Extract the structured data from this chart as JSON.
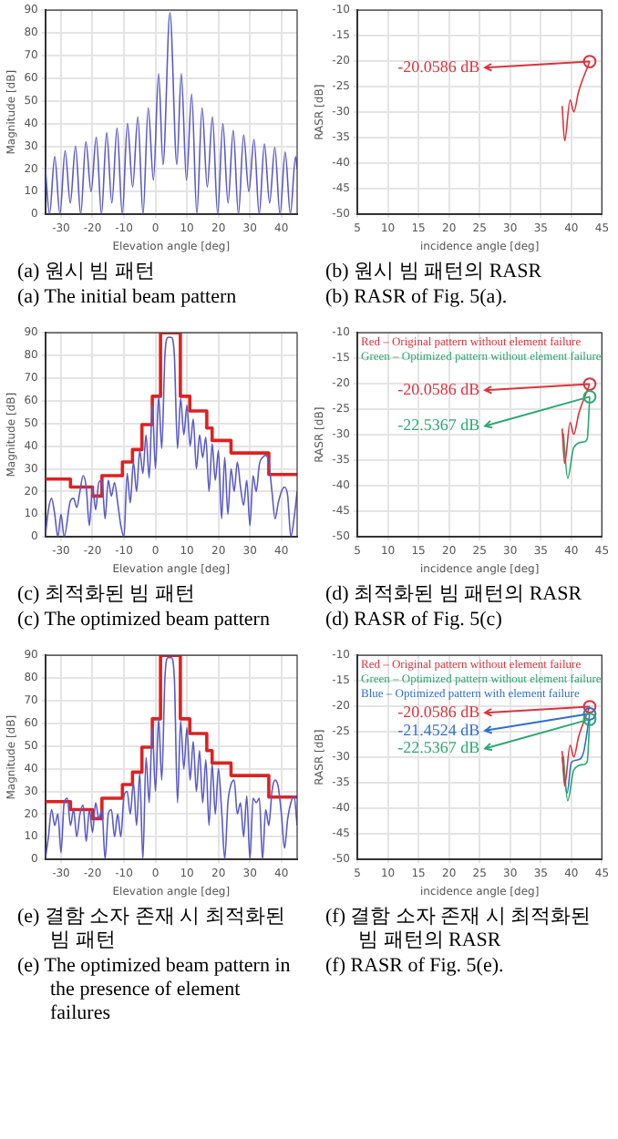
{
  "chart_data": [
    {
      "type": "line",
      "xlabel": "Elevation angle [deg]",
      "ylabel": "Magnitude [dB]",
      "xlim": [
        -35,
        45
      ],
      "xticks": [
        -30,
        -20,
        -10,
        0,
        10,
        20,
        30,
        40
      ],
      "ylim": [
        0,
        90
      ],
      "yticks": [
        0,
        10,
        20,
        30,
        40,
        50,
        60,
        70,
        80,
        90
      ],
      "grid": true,
      "series": [
        {
          "color": "#5a5ac8",
          "x": [
            -35,
            -33.65,
            -32,
            -30.35,
            -28.7,
            -27.05,
            -25.4,
            -23.75,
            -22.1,
            -20.45,
            -18.8,
            -17.15,
            -15.5,
            -13.85,
            -12.2,
            -10.55,
            -8.9,
            -7.25,
            -5.6,
            -3.95,
            -2.3,
            -0.65,
            1,
            2.4,
            4.6,
            6.8,
            8.2,
            9.85,
            11.5,
            13.15,
            14.8,
            16.45,
            18.1,
            19.75,
            21.4,
            23.05,
            24.7,
            26.35,
            28,
            29.65,
            31.3,
            32.95,
            34.6,
            36.25,
            37.9,
            39.55,
            41.2,
            42.85,
            44.5,
            45
          ],
          "values": [
            21,
            0,
            25.5,
            0,
            28,
            5,
            30,
            0,
            32,
            10,
            34,
            0,
            36,
            5,
            38,
            0,
            40,
            12,
            43,
            0,
            47,
            15,
            62,
            22,
            89,
            22,
            62,
            15,
            53,
            0,
            47,
            12,
            43,
            0,
            40,
            5,
            37,
            0,
            35,
            10,
            33,
            0,
            31,
            5,
            29.5,
            0,
            27.5,
            0,
            25.5,
            20
          ]
        }
      ],
      "annotations": [
        "(a) 원시 빔 패턴",
        "(a) The initial beam pattern"
      ]
    },
    {
      "type": "line",
      "xlabel": "incidence angle [deg]",
      "ylabel": "RASR [dB]",
      "xlim": [
        5,
        45
      ],
      "xticks": [
        5,
        10,
        15,
        20,
        25,
        30,
        35,
        40,
        45
      ],
      "ylim": [
        -50,
        -10
      ],
      "yticks": [
        -50,
        -45,
        -40,
        -35,
        -30,
        -25,
        -20,
        -15,
        -10
      ],
      "grid": true,
      "series": [
        {
          "color": "#e0303a",
          "x": [
            38.5,
            38.9,
            39.8,
            40.4,
            41.2,
            43
          ],
          "values": [
            -28.75,
            -35.6,
            -27.6,
            -29.9,
            -25.9,
            -20.0586
          ]
        }
      ],
      "annotations": [
        "-20.0586 dB",
        "(b) 원시 빔 패턴의 RASR",
        "(b) RASR of Fig. 5(a)."
      ]
    },
    {
      "type": "line",
      "xlabel": "Elevation angle [deg]",
      "ylabel": "Magnitude [dB]",
      "xlim": [
        -35,
        45
      ],
      "xticks": [
        -30,
        -20,
        -10,
        0,
        10,
        20,
        30,
        40
      ],
      "ylim": [
        0,
        90
      ],
      "yticks": [
        0,
        10,
        20,
        30,
        40,
        50,
        60,
        70,
        80,
        90
      ],
      "grid": true,
      "series": [
        {
          "color": "#5a5ac8",
          "x": [
            -35,
            -34,
            -33,
            -32,
            -31,
            -30,
            -29,
            -27,
            -26,
            -25,
            -24,
            -23,
            -22,
            -21,
            -20,
            -19,
            -18,
            -17,
            -16,
            -15,
            -14,
            -13,
            -12,
            -11,
            -10,
            -9,
            -8,
            -7,
            -6,
            -5,
            -4,
            -3,
            -2,
            -1,
            0,
            1,
            2,
            3,
            4,
            5,
            6,
            7,
            8,
            9,
            10,
            11,
            12,
            13,
            14,
            15,
            16,
            17,
            18,
            19,
            20,
            21,
            22,
            23,
            24,
            25,
            26,
            27,
            28,
            29,
            30,
            31,
            32,
            33,
            34,
            35,
            36,
            37,
            38,
            39,
            40,
            41,
            42,
            43,
            44,
            45
          ],
          "values": [
            0,
            12,
            17,
            10,
            0,
            10,
            0,
            16,
            17,
            13,
            20,
            27,
            22,
            5,
            22,
            12,
            24,
            25,
            8,
            25,
            18,
            24,
            15,
            5,
            0,
            28,
            15,
            33,
            20,
            38,
            28,
            45,
            26,
            58,
            30,
            62,
            39,
            80,
            88,
            88,
            80,
            39,
            61,
            45,
            58,
            40,
            52,
            30,
            45,
            35,
            44,
            20,
            41,
            25,
            38,
            8,
            35,
            10,
            30,
            20,
            33,
            22,
            14,
            25,
            5,
            27,
            20,
            32,
            35,
            36,
            33,
            20,
            8,
            15,
            20,
            22,
            18,
            0,
            8,
            20
          ]
        },
        {
          "type": "step",
          "color": "#e02020",
          "x": [
            -35,
            -27,
            -20,
            -17,
            -10.5,
            -7.3,
            -4.3,
            -1,
            1.6,
            7.9,
            10.9,
            16.3,
            18,
            24,
            36,
            45
          ],
          "values": [
            25.5,
            22,
            18,
            27,
            33,
            38.5,
            49.5,
            62,
            90,
            62,
            55.5,
            48,
            42.5,
            37,
            27.5,
            27.5
          ]
        }
      ],
      "annotations": [
        "(c) 최적화된 빔 패턴",
        "(c) The optimized beam pattern"
      ]
    },
    {
      "type": "line",
      "xlabel": "incidence angle [deg]",
      "ylabel": "RASR [dB]",
      "xlim": [
        5,
        45
      ],
      "xticks": [
        5,
        10,
        15,
        20,
        25,
        30,
        35,
        40,
        45
      ],
      "ylim": [
        -50,
        -10
      ],
      "yticks": [
        -50,
        -45,
        -40,
        -35,
        -30,
        -25,
        -20,
        -15,
        -10
      ],
      "grid": true,
      "legend": "top left",
      "series": [
        {
          "name": "Red – Original pattern without element failure",
          "color": "#e0303a",
          "x": [
            38.5,
            38.9,
            39.8,
            40.4,
            41.2,
            43
          ],
          "values": [
            -28.75,
            -35.6,
            -27.6,
            -29.9,
            -25.9,
            -20.0586
          ]
        },
        {
          "name": "Green – Optimized pattern without element failure",
          "color": "#2aa870",
          "x": [
            38.7,
            39.4,
            40.4,
            42,
            42.6,
            43
          ],
          "values": [
            -29.7,
            -38.5,
            -32.5,
            -31.4,
            -30.8,
            -22.5367
          ]
        }
      ],
      "annotations": [
        "-20.0586 dB",
        "-22.5367 dB",
        "(d) 최적화된 빔 패턴의 RASR",
        "(d) RASR of Fig. 5(c)"
      ]
    },
    {
      "type": "line",
      "xlabel": "Elevation angle [deg]",
      "ylabel": "Magnitude [dB]",
      "xlim": [
        -35,
        45
      ],
      "xticks": [
        -30,
        -20,
        -10,
        0,
        10,
        20,
        30,
        40
      ],
      "ylim": [
        0,
        90
      ],
      "yticks": [
        0,
        10,
        20,
        30,
        40,
        50,
        60,
        70,
        80,
        90
      ],
      "grid": true,
      "series": [
        {
          "color": "#5a5ac8",
          "x": [
            -35,
            -34,
            -33,
            -32,
            -31,
            -30,
            -29,
            -28,
            -27,
            -26,
            -25,
            -24,
            -23,
            -22,
            -21,
            -20,
            -19,
            -18,
            -17,
            -16,
            -15,
            -14,
            -13,
            -12,
            -11,
            -10,
            -9,
            -8,
            -7,
            -6,
            -5,
            -4,
            -3,
            -2,
            -1,
            0,
            1,
            2,
            3,
            4,
            5,
            6,
            7,
            8,
            9,
            10,
            11,
            12,
            13,
            14,
            15,
            16,
            17,
            18,
            19,
            20,
            21,
            22,
            23,
            24,
            25,
            26,
            27,
            28,
            29,
            30,
            31,
            32,
            33,
            34,
            35,
            36,
            37,
            38,
            39,
            40,
            41,
            42,
            43,
            44,
            45
          ],
          "values": [
            0,
            10,
            22,
            15,
            20,
            3,
            25,
            27,
            15,
            22,
            10,
            20,
            24,
            8,
            22,
            12,
            25,
            18,
            22,
            0,
            20,
            22,
            10,
            20,
            10,
            28,
            30,
            20,
            34,
            15,
            38,
            0,
            45,
            25,
            58,
            30,
            62,
            35,
            80,
            89,
            89,
            80,
            25,
            61,
            40,
            58,
            35,
            52,
            30,
            48,
            25,
            44,
            15,
            42,
            20,
            40,
            22,
            0,
            25,
            33,
            35,
            20,
            25,
            10,
            28,
            0,
            27,
            25,
            27,
            0,
            22,
            15,
            30,
            35,
            32,
            20,
            5,
            18,
            25,
            28,
            15
          ]
        },
        {
          "type": "step",
          "color": "#e02020",
          "x": [
            -35,
            -27,
            -20,
            -17,
            -10.5,
            -7.3,
            -4.3,
            -1,
            1.6,
            7.9,
            10.9,
            16.3,
            18,
            24,
            36,
            45
          ],
          "values": [
            25.5,
            22,
            18,
            27,
            33,
            38.5,
            49.5,
            62,
            90,
            62,
            55.5,
            48,
            42.5,
            37,
            27.5,
            27.5
          ]
        }
      ],
      "annotations": [
        "(e) 결함 소자 존재 시 최적화된 빔 패턴",
        "(e) The optimized beam pattern in the presence of element failures"
      ]
    },
    {
      "type": "line",
      "xlabel": "incidence angle [deg]",
      "ylabel": "RASR [dB]",
      "xlim": [
        5,
        45
      ],
      "xticks": [
        5,
        10,
        15,
        20,
        25,
        30,
        35,
        40,
        45
      ],
      "ylim": [
        -50,
        -10
      ],
      "yticks": [
        -50,
        -45,
        -40,
        -35,
        -30,
        -25,
        -20,
        -15,
        -10
      ],
      "grid": true,
      "legend": "top left",
      "series": [
        {
          "name": "Red – Original pattern without element failure",
          "color": "#e0303a",
          "x": [
            38.5,
            38.9,
            39.8,
            40.4,
            41.2,
            43
          ],
          "values": [
            -28.75,
            -35.6,
            -27.6,
            -29.9,
            -25.9,
            -20.0586
          ]
        },
        {
          "name": "Green – Optimized pattern without element failure",
          "color": "#2aa870",
          "x": [
            38.7,
            39.4,
            40.4,
            42,
            42.6,
            43
          ],
          "values": [
            -29.7,
            -38.5,
            -32.5,
            -31.4,
            -30.8,
            -22.5367
          ]
        },
        {
          "name": "Blue – Optimized pattern with element failure",
          "color": "#2f6fcf",
          "x": [
            38.5,
            39.3,
            40,
            41,
            42,
            43
          ],
          "values": [
            -30,
            -37,
            -31,
            -30.5,
            -29,
            -21.4524
          ]
        }
      ],
      "annotations": [
        "-20.0586 dB",
        "-21.4524 dB",
        "-22.5367 dB",
        "(f) 결함 소자 존재 시 최적화된 빔 패턴의 RASR",
        "(f) RASR of Fig. 5(e)."
      ]
    }
  ]
}
